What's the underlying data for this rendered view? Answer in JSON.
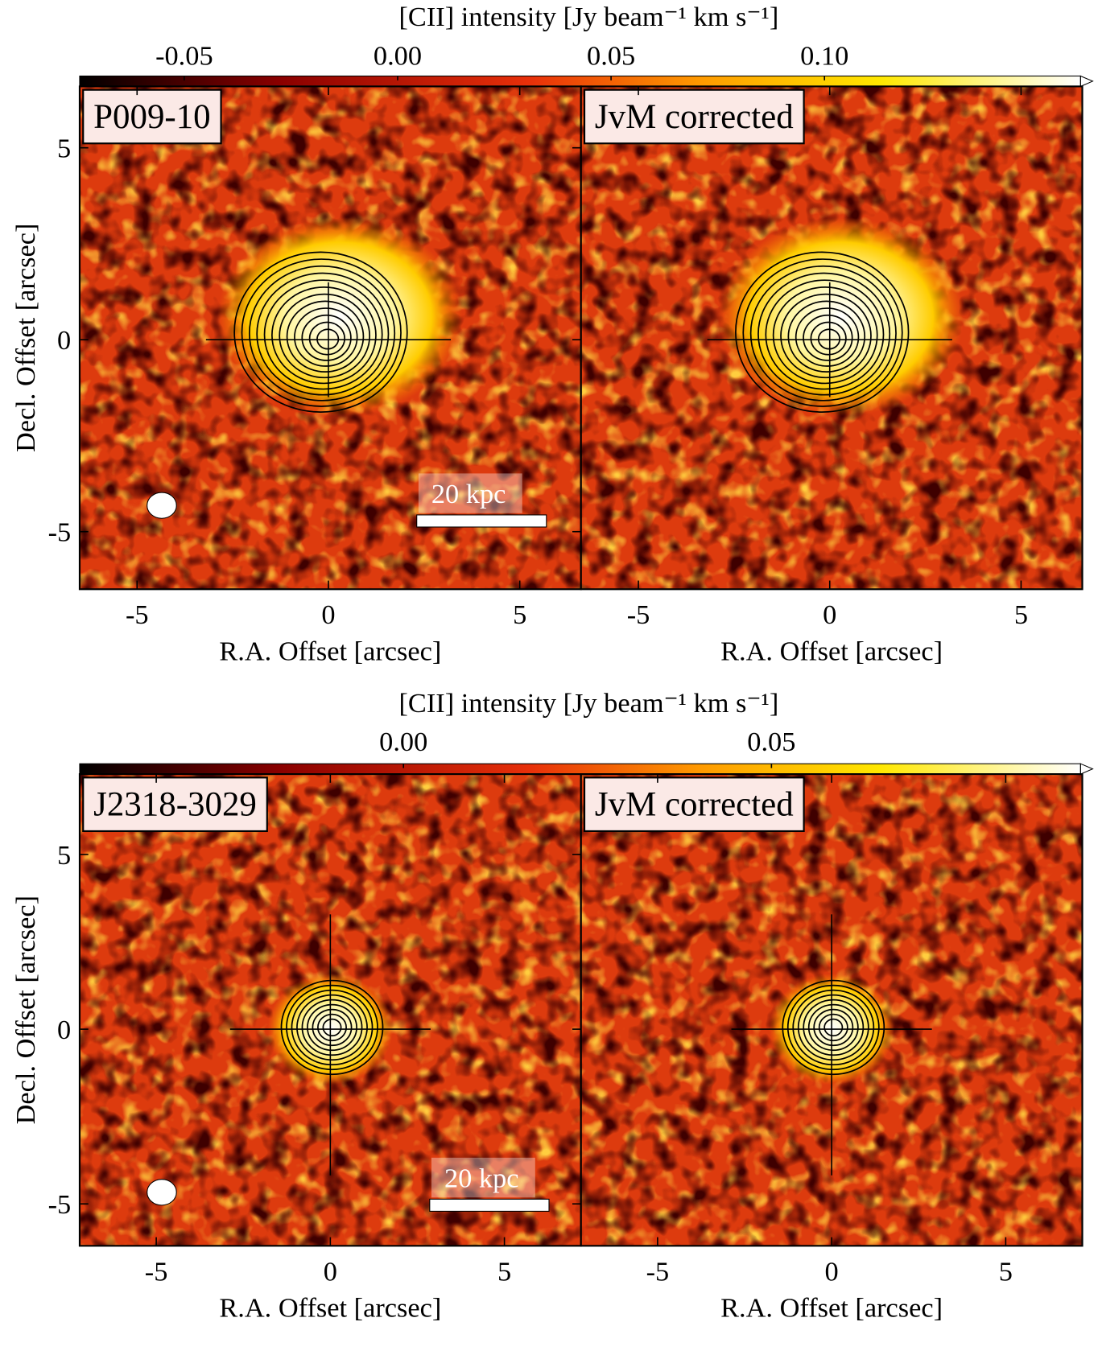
{
  "chart_data": [
    {
      "type": "image",
      "colorbar": {
        "label": "[CII] intensity [Jy beam⁻¹ km s⁻¹]",
        "lim": [
          -0.0745,
          0.16
        ],
        "ticks": [
          -0.05,
          {
            "value": 0,
            "label": "0.00"
          },
          0.05,
          {
            "value": 0.1,
            "label": "0.10"
          }
        ]
      },
      "panels": [
        {
          "label": "P009-10",
          "xlabel": "R.A. Offset [arcsec]",
          "ylabel": "Decl. Offset [arcsec]",
          "xlim": [
            -6.5,
            6.6
          ],
          "ylim": [
            -6.5,
            6.6
          ],
          "xticks": [
            -5,
            0,
            5
          ],
          "yticks": [
            -5,
            0,
            5
          ],
          "scale_bar": "20 kpc"
        },
        {
          "label": "JvM corrected",
          "xlabel": "R.A. Offset [arcsec]",
          "xlim": [
            -6.5,
            6.6
          ],
          "ylim": [
            -6.5,
            6.6
          ],
          "xticks": [
            -5,
            0,
            5
          ]
        }
      ]
    },
    {
      "type": "image",
      "colorbar": {
        "label": "[CII] intensity [Jy beam⁻¹ km s⁻¹]",
        "lim": [
          -0.044,
          0.092
        ],
        "ticks": [
          {
            "value": 0,
            "label": "0.00"
          },
          0.05
        ]
      },
      "panels": [
        {
          "label": "J2318-3029",
          "xlabel": "R.A. Offset [arcsec]",
          "ylabel": "Decl. Offset [arcsec]",
          "xlim": [
            -7.2,
            7.2
          ],
          "ylim": [
            -6.2,
            7.3
          ],
          "xticks": [
            -5,
            0,
            5
          ],
          "yticks": [
            -5,
            0,
            5
          ],
          "scale_bar": "20 kpc"
        },
        {
          "label": "JvM corrected",
          "xlabel": "R.A. Offset [arcsec]",
          "xlim": [
            -7.2,
            7.2
          ],
          "ylim": [
            -6.2,
            7.3
          ],
          "xticks": [
            -5,
            0,
            5
          ]
        }
      ]
    }
  ]
}
